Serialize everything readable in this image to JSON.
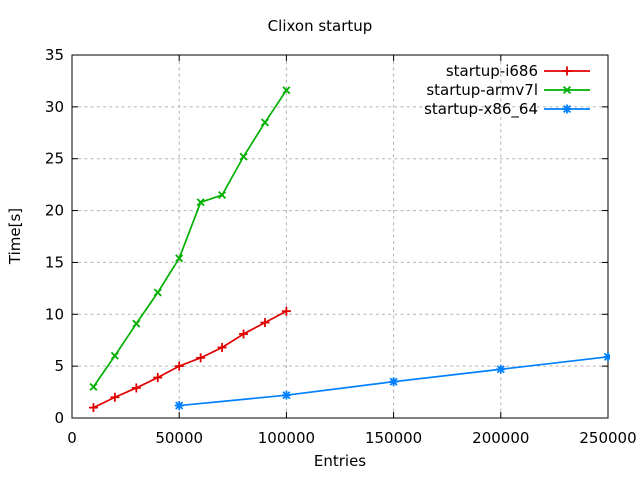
{
  "chart_data": {
    "type": "line",
    "title": "Clixon startup",
    "xlabel": "Entries",
    "ylabel": "Time[s]",
    "xlim": [
      0,
      250000
    ],
    "ylim": [
      0,
      35
    ],
    "xticks": [
      0,
      50000,
      100000,
      150000,
      200000,
      250000
    ],
    "yticks": [
      0,
      5,
      10,
      15,
      20,
      25,
      30,
      35
    ],
    "grid": true,
    "legend_position": "top-right-inside",
    "grid_color": "#b3b3b3",
    "axis_color": "#000000",
    "series": [
      {
        "name": "startup-i686",
        "color": "#e10000",
        "marker": "plus",
        "x": [
          10000,
          20000,
          30000,
          40000,
          50000,
          60000,
          70000,
          80000,
          90000,
          100000
        ],
        "y": [
          1.0,
          2.0,
          2.9,
          3.9,
          5.0,
          5.8,
          6.8,
          8.1,
          9.2,
          10.3
        ]
      },
      {
        "name": "startup-armv7l",
        "color": "#00b000",
        "marker": "cross",
        "x": [
          10000,
          20000,
          30000,
          40000,
          50000,
          60000,
          70000,
          80000,
          90000,
          100000
        ],
        "y": [
          3.0,
          6.0,
          9.1,
          12.1,
          15.4,
          20.8,
          21.5,
          25.2,
          28.5,
          31.6
        ]
      },
      {
        "name": "startup-x86_64",
        "color": "#0080ff",
        "marker": "star",
        "x": [
          50000,
          100000,
          150000,
          200000,
          250000
        ],
        "y": [
          1.2,
          2.2,
          3.5,
          4.7,
          5.9
        ]
      }
    ]
  }
}
